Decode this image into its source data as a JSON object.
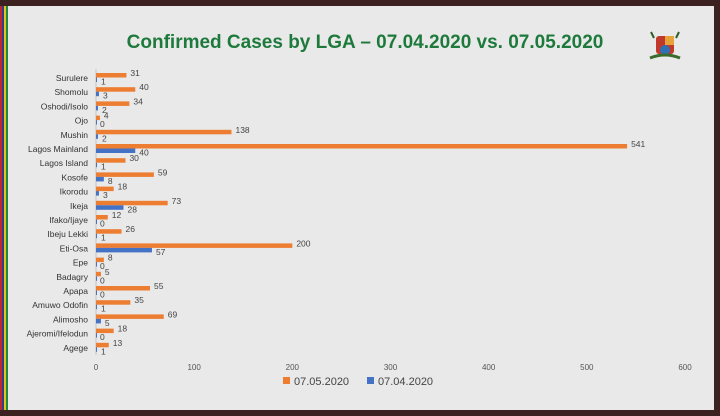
{
  "chart_data": {
    "type": "bar",
    "orientation": "horizontal",
    "title": "Confirmed Cases by LGA – 07.04.2020 vs. 07.05.2020",
    "categories": [
      "Surulere",
      "Shomolu",
      "Oshodi/Isolo",
      "Ojo",
      "Mushin",
      "Lagos Mainland",
      "Lagos Island",
      "Kosofe",
      "Ikorodu",
      "Ikeja",
      "Ifako/Ijaye",
      "Ibeju Lekki",
      "Eti-Osa",
      "Epe",
      "Badagry",
      "Apapa",
      "Amuwo Odofin",
      "Alimosho",
      "Ajeromi/Ifelodun",
      "Agege"
    ],
    "series": [
      {
        "name": "07.05.2020",
        "color": "#ed7d31",
        "values": [
          31,
          40,
          34,
          4,
          138,
          541,
          30,
          59,
          18,
          73,
          12,
          26,
          200,
          8,
          5,
          55,
          35,
          69,
          18,
          13
        ]
      },
      {
        "name": "07.04.2020",
        "color": "#4472c4",
        "values": [
          1,
          3,
          2,
          0,
          2,
          40,
          1,
          8,
          3,
          28,
          0,
          1,
          57,
          0,
          0,
          0,
          1,
          5,
          0,
          1
        ]
      }
    ],
    "xlim": [
      0,
      600
    ],
    "xticks": [
      "0",
      "100",
      "200",
      "300",
      "400",
      "500",
      "600"
    ],
    "legend_position": "bottom"
  }
}
